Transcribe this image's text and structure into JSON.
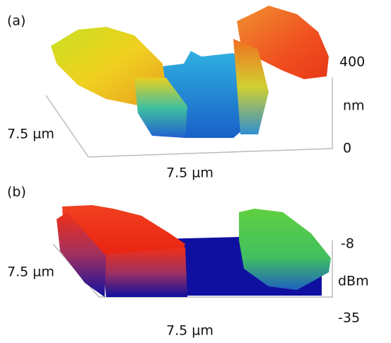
{
  "panels": [
    {
      "label": "(a)",
      "y_label": "7.5 µm",
      "x_label": "7.5 µm",
      "z_unit": "nm",
      "z_max": "400",
      "z_min": "0"
    },
    {
      "label": "(b)",
      "y_label": "7.5 µm",
      "x_label": "7.5 µm",
      "z_unit": "dBm",
      "z_max": "-8",
      "z_min": "-35"
    }
  ]
}
